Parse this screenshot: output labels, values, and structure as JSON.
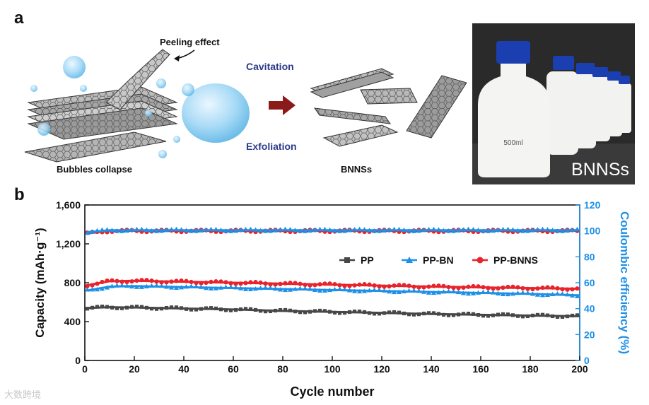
{
  "panel_a": {
    "letter": "a",
    "peeling_label": "Peeling effect",
    "bubbles_label": "Bubbles collapse",
    "cavitation_label": "Cavitation",
    "exfoliation_label": "Exfoliation",
    "bnnss_label": "BNNSs",
    "photo_caption": "BNNSs",
    "bottle_label": "500ml"
  },
  "panel_b": {
    "letter": "b"
  },
  "watermark": "大数跨境",
  "colors": {
    "pp": "#474747",
    "pp_bn": "#1e90e6",
    "pp_bnns": "#e8232b",
    "right_axis": "#1e90e6",
    "arrow": "#8b1a1a",
    "title_blue": "#2b3a8c"
  },
  "chart_data": {
    "type": "line",
    "xlabel": "Cycle number",
    "ylabel": "Capacity (mAh·g⁻¹)",
    "y2label": "Coulombic efficiency (%)",
    "xlim": [
      0,
      200
    ],
    "ylim": [
      0,
      1600
    ],
    "y2lim": [
      0,
      120
    ],
    "xticks": [
      "0",
      "20",
      "40",
      "60",
      "80",
      "100",
      "120",
      "140",
      "160",
      "180",
      "200"
    ],
    "yticks": [
      "0",
      "400",
      "800",
      "1,200",
      "1,600"
    ],
    "y2ticks": [
      "0",
      "20",
      "40",
      "60",
      "80",
      "100",
      "120"
    ],
    "legend_position": "upper-right",
    "x": [
      1,
      10,
      20,
      30,
      40,
      60,
      80,
      100,
      120,
      140,
      160,
      180,
      200
    ],
    "series": [
      {
        "name": "PP",
        "axis": "left",
        "marker": "square",
        "values": [
          540,
          548,
          545,
          540,
          535,
          525,
          510,
          500,
          490,
          478,
          470,
          462,
          455
        ]
      },
      {
        "name": "PP-BN",
        "axis": "left",
        "marker": "triangle",
        "values": [
          720,
          760,
          765,
          760,
          755,
          745,
          735,
          725,
          715,
          705,
          695,
          685,
          670
        ]
      },
      {
        "name": "PP-BNNS",
        "axis": "left",
        "marker": "circle",
        "values": [
          775,
          815,
          820,
          815,
          810,
          800,
          790,
          780,
          770,
          760,
          752,
          745,
          738
        ]
      },
      {
        "name": "PP-BNNS CE",
        "axis": "right",
        "marker": "circle",
        "legend": false,
        "values": [
          98,
          100,
          100,
          100,
          100,
          100,
          100,
          100,
          100,
          100,
          100,
          100,
          100
        ]
      },
      {
        "name": "PP-BN CE",
        "axis": "right",
        "marker": "triangle",
        "legend": false,
        "values": [
          99,
          100.5,
          100.5,
          100.5,
          100.5,
          100.5,
          100.5,
          100.5,
          100.5,
          100.5,
          100.5,
          100.5,
          100.5
        ]
      }
    ]
  }
}
